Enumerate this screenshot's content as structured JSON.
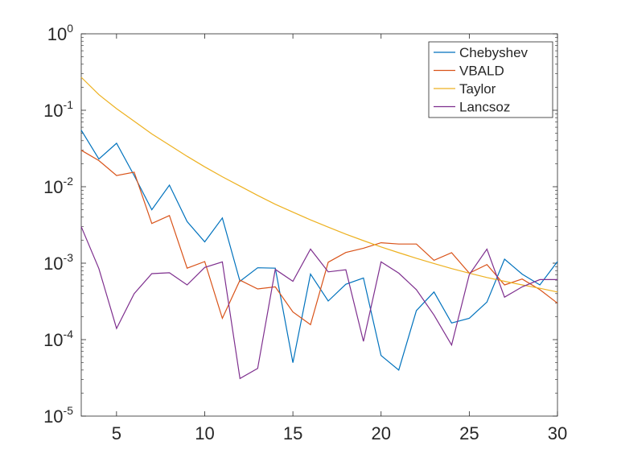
{
  "chart_data": {
    "type": "line",
    "title": "",
    "xlabel": "",
    "ylabel": "",
    "yscale": "log",
    "xlim": [
      3,
      30
    ],
    "ylim": [
      1e-05,
      1
    ],
    "grid": false,
    "legend_position": "top-right",
    "x": [
      3,
      4,
      5,
      6,
      7,
      8,
      9,
      10,
      11,
      12,
      13,
      14,
      15,
      16,
      17,
      18,
      19,
      20,
      21,
      22,
      23,
      24,
      25,
      26,
      27,
      28,
      29,
      30
    ],
    "xticks": [
      5,
      10,
      15,
      20,
      25,
      30
    ],
    "xtick_labels": [
      "5",
      "10",
      "15",
      "20",
      "25",
      "30"
    ],
    "yticks": [
      {
        "value": 1,
        "base": "10",
        "exp": "0"
      },
      {
        "value": 0.1,
        "base": "10",
        "exp": "-1"
      },
      {
        "value": 0.01,
        "base": "10",
        "exp": "-2"
      },
      {
        "value": 0.001,
        "base": "10",
        "exp": "-3"
      },
      {
        "value": 0.0001,
        "base": "10",
        "exp": "-4"
      },
      {
        "value": 1e-05,
        "base": "10",
        "exp": "-5"
      }
    ],
    "series": [
      {
        "name": "Chebyshev",
        "color": "#0072BD",
        "values": [
          0.055,
          0.023,
          0.037,
          0.014,
          0.005,
          0.0105,
          0.0035,
          0.0019,
          0.0039,
          0.00058,
          0.00087,
          0.00086,
          5e-05,
          0.00072,
          0.00032,
          0.00053,
          0.00064,
          6.2e-05,
          4e-05,
          0.00024,
          0.00042,
          0.000165,
          0.00019,
          0.00031,
          0.00113,
          0.00072,
          0.00052,
          0.00105
        ]
      },
      {
        "name": "VBALD",
        "color": "#D95319",
        "values": [
          0.03,
          0.022,
          0.014,
          0.0155,
          0.0033,
          0.0042,
          0.00086,
          0.00105,
          0.00019,
          0.0006,
          0.00046,
          0.00049,
          0.00023,
          0.000157,
          0.00103,
          0.00138,
          0.00157,
          0.00185,
          0.00178,
          0.00178,
          0.00109,
          0.00137,
          0.00074,
          0.00096,
          0.00052,
          0.00062,
          0.00045,
          0.0003
        ]
      },
      {
        "name": "Taylor",
        "color": "#EDB120",
        "values": [
          0.27,
          0.16,
          0.105,
          0.072,
          0.049,
          0.035,
          0.025,
          0.0182,
          0.0135,
          0.0102,
          0.0077,
          0.0059,
          0.00465,
          0.00368,
          0.00296,
          0.0024,
          0.00197,
          0.00163,
          0.00137,
          0.00116,
          0.00099,
          0.00085,
          0.00074,
          0.00065,
          0.00058,
          0.00052,
          0.00047,
          0.00042
        ]
      },
      {
        "name": "Lancsoz",
        "color": "#7E2F8E",
        "values": [
          0.003,
          0.00085,
          0.00014,
          0.0004,
          0.00073,
          0.00075,
          0.00052,
          0.00088,
          0.00104,
          3.1e-05,
          4.2e-05,
          0.00083,
          0.00058,
          0.00153,
          0.00077,
          0.00082,
          9.5e-05,
          0.00104,
          0.00074,
          0.00045,
          0.00021,
          8.5e-05,
          0.00071,
          0.00153,
          0.00036,
          0.00049,
          0.00061,
          0.00061
        ]
      }
    ]
  }
}
